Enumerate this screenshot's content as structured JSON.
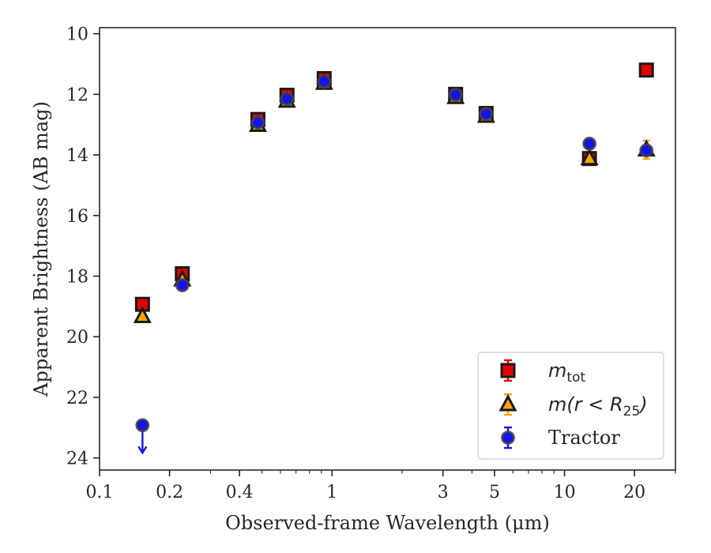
{
  "chart_data": {
    "type": "scatter",
    "xlabel": "Observed-frame Wavelength (μm)",
    "ylabel": "Apparent Brightness (AB mag)",
    "xscale": "log",
    "xlim": [
      0.1,
      30
    ],
    "ylim": [
      24.4,
      9.8
    ],
    "y_inverted": true,
    "x_ticks": [
      {
        "value": 0.1,
        "label": "0.1"
      },
      {
        "value": 0.2,
        "label": "0.2"
      },
      {
        "value": 0.4,
        "label": "0.4"
      },
      {
        "value": 1,
        "label": "1"
      },
      {
        "value": 3,
        "label": "3"
      },
      {
        "value": 5,
        "label": "5"
      },
      {
        "value": 10,
        "label": "10"
      },
      {
        "value": 20,
        "label": "20"
      }
    ],
    "x_minor_ticks": [
      0.3,
      0.5,
      0.6,
      0.7,
      0.8,
      0.9,
      2,
      4,
      6,
      7,
      8,
      9,
      30
    ],
    "y_ticks": [
      10,
      12,
      14,
      16,
      18,
      20,
      22,
      24
    ],
    "legend_position": "lower-right",
    "series": [
      {
        "name": "m_tot",
        "legend_main": "m",
        "legend_sub": "tot",
        "marker": "square",
        "face_color": "#e30000",
        "edge_color": "#1a1a1a",
        "error_color": "#e30000",
        "points": [
          {
            "x": 0.153,
            "y": 18.93
          },
          {
            "x": 0.227,
            "y": 17.92
          },
          {
            "x": 0.48,
            "y": 12.83
          },
          {
            "x": 0.64,
            "y": 12.03
          },
          {
            "x": 0.925,
            "y": 11.48
          },
          {
            "x": 3.4,
            "y": 12.0
          },
          {
            "x": 4.6,
            "y": 12.63
          },
          {
            "x": 12.8,
            "y": 14.12
          },
          {
            "x": 22.5,
            "y": 11.2
          }
        ]
      },
      {
        "name": "m(r < R_25)",
        "legend_main": "m(r < R",
        "legend_sub": "25",
        "legend_end": ")",
        "marker": "triangle",
        "face_color": "#ffa500",
        "edge_color": "#1a1a1a",
        "error_color": "#ffa500",
        "points": [
          {
            "x": 0.153,
            "y": 19.33
          },
          {
            "x": 0.227,
            "y": 18.12
          },
          {
            "x": 0.48,
            "y": 13.02
          },
          {
            "x": 0.64,
            "y": 12.22
          },
          {
            "x": 0.925,
            "y": 11.63
          },
          {
            "x": 3.4,
            "y": 12.1
          },
          {
            "x": 4.6,
            "y": 12.72
          },
          {
            "x": 12.8,
            "y": 14.12
          },
          {
            "x": 22.5,
            "y": 13.83,
            "err": 0.3
          }
        ]
      },
      {
        "name": "Tractor",
        "marker": "circle",
        "face_color": "#1414e6",
        "edge_color": "#444444",
        "error_color": "#1414e6",
        "points": [
          {
            "x": 0.153,
            "y": 22.92,
            "upper_limit": true
          },
          {
            "x": 0.227,
            "y": 18.3
          },
          {
            "x": 0.48,
            "y": 12.93
          },
          {
            "x": 0.64,
            "y": 12.15
          },
          {
            "x": 0.925,
            "y": 11.58
          },
          {
            "x": 3.4,
            "y": 12.02
          },
          {
            "x": 4.6,
            "y": 12.65
          },
          {
            "x": 12.8,
            "y": 13.63
          },
          {
            "x": 22.5,
            "y": 13.85
          }
        ]
      }
    ]
  }
}
